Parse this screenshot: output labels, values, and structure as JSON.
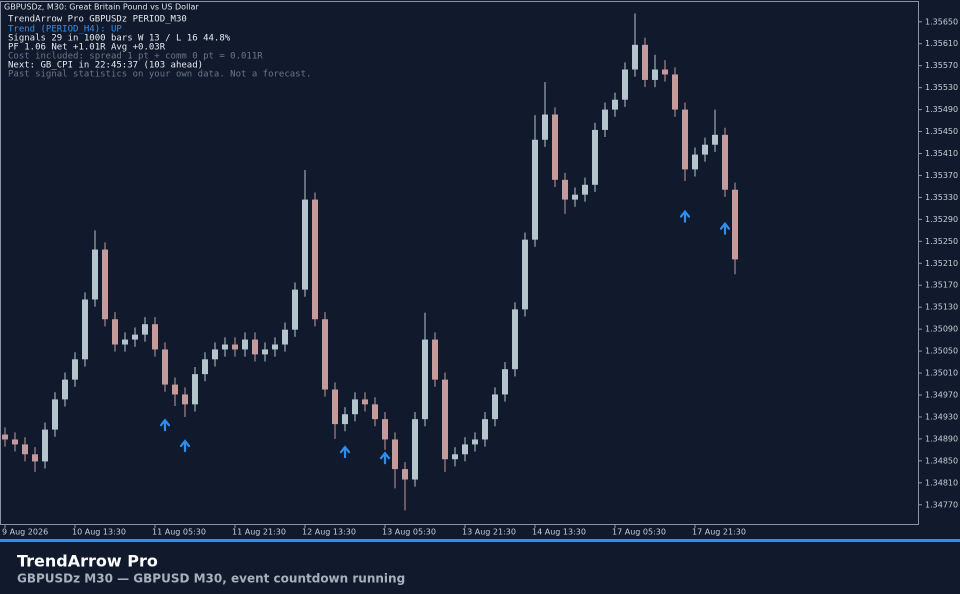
{
  "window_title": "GBPUSDz, M30:  Great Britain Pound vs US Dollar",
  "overlay": {
    "lines": [
      "TrendArrow Pro  GBPUSDz PERIOD_M30",
      "Trend (PERIOD_H4): UP",
      "Signals 29 in 1000 bars   W 13 / L 16   44.8%",
      "PF 1.06   Net +1.01R   Avg +0.03R",
      "Cost included: spread 1 pt + comm 0 pt = 0.011R",
      "Next: GB_CPI in 22:45:37   (103 ahead)",
      "Past signal statistics on your own data. Not a forecast."
    ]
  },
  "chart_data": {
    "type": "candlestick",
    "categories": [
      "9 Aug 2026",
      null,
      null,
      null,
      null,
      null,
      null,
      "10 Aug 13:30",
      null,
      null,
      null,
      null,
      null,
      null,
      null,
      "11 Aug 05:30",
      null,
      null,
      null,
      null,
      null,
      null,
      null,
      "11 Aug 21:30",
      null,
      null,
      null,
      null,
      null,
      null,
      "12 Aug 13:30",
      null,
      null,
      null,
      null,
      null,
      null,
      null,
      "13 Aug 05:30",
      null,
      null,
      null,
      null,
      null,
      null,
      null,
      "13 Aug 21:30",
      null,
      null,
      null,
      null,
      null,
      null,
      "14 Aug 13:30",
      null,
      null,
      null,
      null,
      null,
      null,
      null,
      "17 Aug 05:30",
      null,
      null,
      null,
      null,
      null,
      null,
      null,
      "17 Aug 21:30",
      null,
      null,
      null,
      null
    ],
    "open": [
      1.34898,
      1.34889,
      1.3488,
      1.34862,
      1.34849,
      1.34907,
      1.34962,
      1.34998,
      1.35035,
      1.35144,
      1.35235,
      1.35108,
      1.35062,
      1.35071,
      1.3508,
      1.35099,
      1.35053,
      1.34989,
      1.34971,
      1.34953,
      1.35008,
      1.35035,
      1.35053,
      1.35062,
      1.35053,
      1.35071,
      1.35044,
      1.35053,
      1.35062,
      1.35089,
      1.35162,
      1.35326,
      1.35108,
      1.3498,
      1.34917,
      1.34935,
      1.34962,
      1.34953,
      1.34926,
      1.34889,
      1.34835,
      1.34816,
      1.34926,
      1.35071,
      1.34998,
      1.34853,
      1.34862,
      1.3488,
      1.34889,
      1.34926,
      1.34971,
      1.35017,
      1.35126,
      1.35253,
      1.35435,
      1.35481,
      1.35362,
      1.35326,
      1.35335,
      1.35353,
      1.35453,
      1.3549,
      1.35508,
      1.35563,
      1.35608,
      1.35544,
      1.35563,
      1.35554,
      1.3549,
      1.35381,
      1.35408,
      1.35426,
      1.35444,
      1.35344
    ],
    "high": [
      1.34911,
      1.34902,
      1.34893,
      1.34875,
      1.3492,
      1.34975,
      1.35011,
      1.35048,
      1.35157,
      1.3527,
      1.35248,
      1.35121,
      1.35084,
      1.35093,
      1.35112,
      1.35112,
      1.35066,
      1.35002,
      1.34984,
      1.35021,
      1.35048,
      1.35066,
      1.35075,
      1.35075,
      1.35084,
      1.35084,
      1.35066,
      1.35075,
      1.35102,
      1.35175,
      1.3538,
      1.35339,
      1.35121,
      1.34993,
      1.34948,
      1.34975,
      1.34975,
      1.34966,
      1.34939,
      1.34902,
      1.34848,
      1.34939,
      1.3512,
      1.35084,
      1.35011,
      1.34875,
      1.34893,
      1.34902,
      1.34939,
      1.34984,
      1.3503,
      1.35139,
      1.35266,
      1.3548,
      1.3554,
      1.35494,
      1.35375,
      1.35348,
      1.35366,
      1.35466,
      1.35503,
      1.35521,
      1.35576,
      1.35665,
      1.35621,
      1.3559,
      1.3558,
      1.35567,
      1.35503,
      1.35421,
      1.35439,
      1.3549,
      1.35457,
      1.35357
    ],
    "low": [
      1.34876,
      1.34867,
      1.34849,
      1.3483,
      1.34836,
      1.34894,
      1.34949,
      1.34985,
      1.35022,
      1.35131,
      1.35095,
      1.35049,
      1.35049,
      1.35058,
      1.35067,
      1.3504,
      1.34976,
      1.3495,
      1.3493,
      1.3494,
      1.34995,
      1.35022,
      1.3504,
      1.3504,
      1.3504,
      1.35031,
      1.35031,
      1.3504,
      1.35049,
      1.35076,
      1.35149,
      1.35095,
      1.34967,
      1.3489,
      1.34904,
      1.34922,
      1.3494,
      1.34913,
      1.3487,
      1.348,
      1.3476,
      1.34803,
      1.34913,
      1.34985,
      1.3483,
      1.3484,
      1.34849,
      1.34867,
      1.34876,
      1.34913,
      1.34958,
      1.35004,
      1.35113,
      1.3524,
      1.35422,
      1.35349,
      1.353,
      1.35313,
      1.35322,
      1.3534,
      1.3544,
      1.35477,
      1.35495,
      1.3555,
      1.35531,
      1.35531,
      1.35541,
      1.35477,
      1.3536,
      1.35368,
      1.35395,
      1.35413,
      1.35331,
      1.3519
    ],
    "close": [
      1.34889,
      1.3488,
      1.34862,
      1.34849,
      1.34907,
      1.34962,
      1.34998,
      1.35035,
      1.35144,
      1.35235,
      1.35108,
      1.35062,
      1.35071,
      1.3508,
      1.35099,
      1.35053,
      1.34989,
      1.34971,
      1.34953,
      1.35008,
      1.35035,
      1.35053,
      1.35062,
      1.35053,
      1.35071,
      1.35044,
      1.35053,
      1.35062,
      1.35089,
      1.35162,
      1.35326,
      1.35108,
      1.3498,
      1.34917,
      1.34935,
      1.34962,
      1.34953,
      1.34926,
      1.34889,
      1.34835,
      1.34816,
      1.34926,
      1.35071,
      1.34998,
      1.34853,
      1.34862,
      1.3488,
      1.34889,
      1.34926,
      1.34971,
      1.35017,
      1.35126,
      1.35253,
      1.35435,
      1.35481,
      1.35362,
      1.35326,
      1.35335,
      1.35353,
      1.35453,
      1.3549,
      1.35508,
      1.35563,
      1.35608,
      1.35544,
      1.35563,
      1.35554,
      1.3549,
      1.35381,
      1.35408,
      1.35426,
      1.35444,
      1.35344,
      1.35217
    ],
    "up_color": "#b4c4cc",
    "down_color": "#c49a9a",
    "signals": {
      "color": "#2e8ef0",
      "values": [
        null,
        null,
        null,
        null,
        null,
        null,
        null,
        null,
        null,
        null,
        null,
        null,
        null,
        null,
        null,
        null,
        1.34915,
        null,
        1.34877,
        null,
        null,
        null,
        null,
        null,
        null,
        null,
        null,
        null,
        null,
        null,
        null,
        null,
        null,
        null,
        1.34866,
        null,
        null,
        null,
        1.34855,
        null,
        null,
        null,
        null,
        null,
        null,
        null,
        null,
        null,
        null,
        null,
        null,
        null,
        null,
        null,
        null,
        null,
        null,
        null,
        null,
        null,
        null,
        null,
        null,
        null,
        null,
        null,
        null,
        null,
        1.35295,
        null,
        null,
        null,
        1.35273,
        null
      ]
    },
    "ylim": [
      1.34735,
      1.35686
    ],
    "yticks": [
      {
        "value": 1.3565,
        "label": "1.35650"
      },
      {
        "value": 1.3561,
        "label": "1.35610"
      },
      {
        "value": 1.3557,
        "label": "1.35570"
      },
      {
        "value": 1.3553,
        "label": "1.35530"
      },
      {
        "value": 1.3549,
        "label": "1.35490"
      },
      {
        "value": 1.3545,
        "label": "1.35450"
      },
      {
        "value": 1.3541,
        "label": "1.35410"
      },
      {
        "value": 1.3537,
        "label": "1.35370"
      },
      {
        "value": 1.3533,
        "label": "1.35330"
      },
      {
        "value": 1.3529,
        "label": "1.35290"
      },
      {
        "value": 1.3525,
        "label": "1.35250"
      },
      {
        "value": 1.3521,
        "label": "1.35210"
      },
      {
        "value": 1.3517,
        "label": "1.35170"
      },
      {
        "value": 1.3513,
        "label": "1.35130"
      },
      {
        "value": 1.3509,
        "label": "1.35090"
      },
      {
        "value": 1.3505,
        "label": "1.35050"
      },
      {
        "value": 1.3501,
        "label": "1.35010"
      },
      {
        "value": 1.3497,
        "label": "1.34970"
      },
      {
        "value": 1.3493,
        "label": "1.34930"
      },
      {
        "value": 1.3489,
        "label": "1.34890"
      },
      {
        "value": 1.3485,
        "label": "1.34850"
      },
      {
        "value": 1.3481,
        "label": "1.34810"
      },
      {
        "value": 1.3477,
        "label": "1.34770"
      }
    ]
  },
  "caption": {
    "title": "TrendArrow Pro",
    "subtitle": "GBPUSDz  M30  —  GBPUSD M30, event countdown running"
  }
}
